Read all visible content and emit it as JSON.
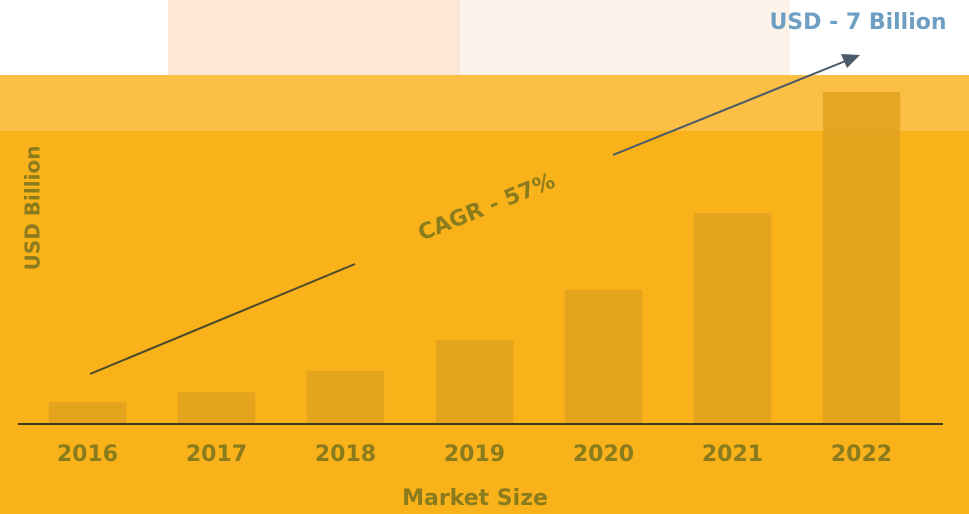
{
  "chart_data": {
    "type": "bar",
    "x_label": "Market Size",
    "y_label": "USD Billion",
    "annotations": [
      "USD - 7 Billion",
      "CAGR - 57%"
    ],
    "categories": [
      "2016",
      "2017",
      "2018",
      "2019",
      "2020",
      "2021",
      "2022"
    ],
    "values": [
      0.46,
      0.67,
      1.12,
      1.77,
      2.83,
      4.45,
      7.0
    ],
    "color": "#e0a11e",
    "ylim": [
      0,
      7
    ]
  }
}
